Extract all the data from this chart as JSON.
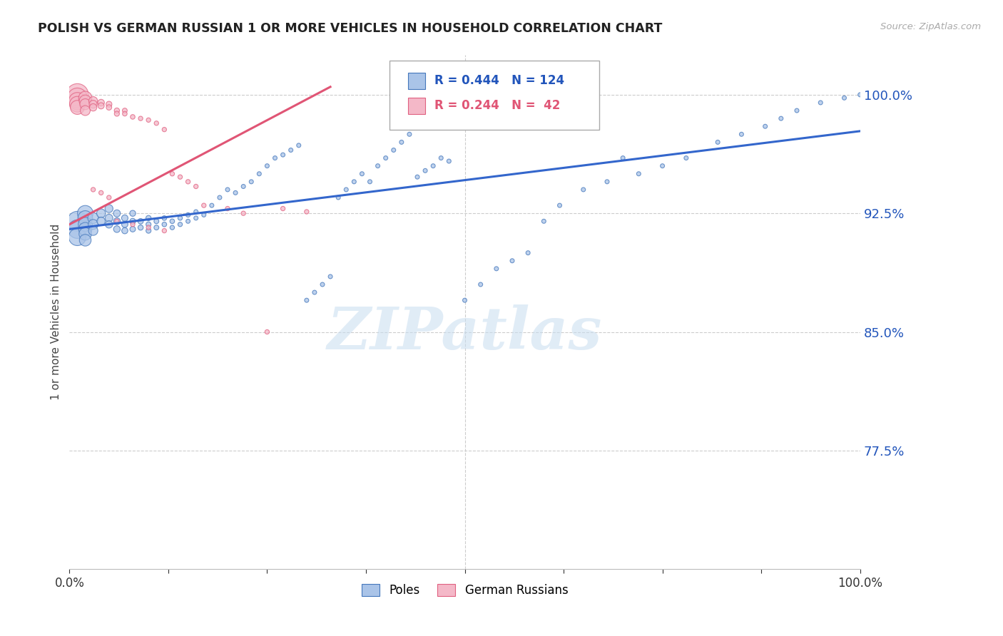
{
  "title": "POLISH VS GERMAN RUSSIAN 1 OR MORE VEHICLES IN HOUSEHOLD CORRELATION CHART",
  "source": "Source: ZipAtlas.com",
  "ylabel": "1 or more Vehicles in Household",
  "ytick_labels": [
    "100.0%",
    "92.5%",
    "85.0%",
    "77.5%"
  ],
  "ytick_values": [
    1.0,
    0.925,
    0.85,
    0.775
  ],
  "xlim": [
    0.0,
    1.0
  ],
  "ylim": [
    0.7,
    1.025
  ],
  "legend_blue_label": "Poles",
  "legend_pink_label": "German Russians",
  "watermark": "ZIPatlas",
  "blue_color": "#aac4e8",
  "pink_color": "#f4b8c8",
  "blue_edge_color": "#4477bb",
  "pink_edge_color": "#e06080",
  "blue_line_color": "#3366cc",
  "pink_line_color": "#e05575",
  "blue_scatter_x": [
    0.01,
    0.01,
    0.01,
    0.02,
    0.02,
    0.02,
    0.02,
    0.02,
    0.02,
    0.03,
    0.03,
    0.03,
    0.04,
    0.04,
    0.05,
    0.05,
    0.05,
    0.06,
    0.06,
    0.06,
    0.07,
    0.07,
    0.07,
    0.08,
    0.08,
    0.08,
    0.09,
    0.09,
    0.1,
    0.1,
    0.1,
    0.11,
    0.11,
    0.12,
    0.12,
    0.13,
    0.13,
    0.14,
    0.14,
    0.15,
    0.15,
    0.16,
    0.16,
    0.17,
    0.18,
    0.19,
    0.2,
    0.21,
    0.22,
    0.23,
    0.24,
    0.25,
    0.26,
    0.27,
    0.28,
    0.29,
    0.3,
    0.31,
    0.32,
    0.33,
    0.34,
    0.35,
    0.36,
    0.37,
    0.38,
    0.39,
    0.4,
    0.41,
    0.42,
    0.43,
    0.44,
    0.45,
    0.46,
    0.47,
    0.48,
    0.5,
    0.52,
    0.54,
    0.56,
    0.58,
    0.6,
    0.62,
    0.65,
    0.68,
    0.7,
    0.72,
    0.75,
    0.78,
    0.82,
    0.85,
    0.88,
    0.9,
    0.92,
    0.95,
    0.98,
    1.0
  ],
  "blue_scatter_y": [
    0.92,
    0.915,
    0.91,
    0.925,
    0.922,
    0.918,
    0.915,
    0.912,
    0.908,
    0.922,
    0.918,
    0.914,
    0.925,
    0.92,
    0.928,
    0.922,
    0.918,
    0.925,
    0.92,
    0.915,
    0.922,
    0.918,
    0.914,
    0.925,
    0.92,
    0.915,
    0.92,
    0.916,
    0.922,
    0.918,
    0.914,
    0.92,
    0.916,
    0.922,
    0.918,
    0.92,
    0.916,
    0.922,
    0.918,
    0.924,
    0.92,
    0.926,
    0.922,
    0.924,
    0.93,
    0.935,
    0.94,
    0.938,
    0.942,
    0.945,
    0.95,
    0.955,
    0.96,
    0.962,
    0.965,
    0.968,
    0.87,
    0.875,
    0.88,
    0.885,
    0.935,
    0.94,
    0.945,
    0.95,
    0.945,
    0.955,
    0.96,
    0.965,
    0.97,
    0.975,
    0.948,
    0.952,
    0.955,
    0.96,
    0.958,
    0.87,
    0.88,
    0.89,
    0.895,
    0.9,
    0.92,
    0.93,
    0.94,
    0.945,
    0.96,
    0.95,
    0.955,
    0.96,
    0.97,
    0.975,
    0.98,
    0.985,
    0.99,
    0.995,
    0.998,
    1.0
  ],
  "blue_scatter_s": [
    400,
    350,
    300,
    250,
    220,
    200,
    180,
    160,
    140,
    120,
    100,
    90,
    80,
    70,
    65,
    60,
    55,
    50,
    48,
    45,
    42,
    40,
    38,
    36,
    34,
    32,
    30,
    28,
    28,
    26,
    26,
    24,
    24,
    22,
    22,
    22,
    20,
    20,
    20,
    20,
    18,
    18,
    18,
    18,
    18,
    18,
    18,
    18,
    18,
    18,
    18,
    18,
    18,
    18,
    18,
    18,
    18,
    18,
    18,
    18,
    18,
    18,
    18,
    18,
    18,
    18,
    18,
    18,
    18,
    18,
    18,
    18,
    18,
    18,
    18,
    18,
    18,
    18,
    18,
    18,
    18,
    18,
    18,
    18,
    18,
    18,
    18,
    18,
    18,
    18,
    18,
    18,
    18,
    18,
    18,
    18
  ],
  "pink_scatter_x": [
    0.01,
    0.01,
    0.01,
    0.01,
    0.01,
    0.02,
    0.02,
    0.02,
    0.02,
    0.03,
    0.03,
    0.03,
    0.04,
    0.04,
    0.05,
    0.05,
    0.06,
    0.06,
    0.07,
    0.07,
    0.08,
    0.09,
    0.1,
    0.11,
    0.12,
    0.13,
    0.14,
    0.15,
    0.16,
    0.17,
    0.2,
    0.22,
    0.25,
    0.27,
    0.3,
    0.06,
    0.08,
    0.1,
    0.12,
    0.03,
    0.04,
    0.05
  ],
  "pink_scatter_y": [
    1.0,
    0.998,
    0.996,
    0.994,
    0.992,
    0.998,
    0.996,
    0.994,
    0.99,
    0.996,
    0.994,
    0.992,
    0.995,
    0.993,
    0.994,
    0.992,
    0.99,
    0.988,
    0.99,
    0.988,
    0.986,
    0.985,
    0.984,
    0.982,
    0.978,
    0.95,
    0.948,
    0.945,
    0.942,
    0.93,
    0.928,
    0.925,
    0.85,
    0.928,
    0.926,
    0.92,
    0.918,
    0.916,
    0.914,
    0.94,
    0.938,
    0.935
  ],
  "pink_scatter_s": [
    500,
    400,
    300,
    250,
    200,
    180,
    150,
    120,
    100,
    80,
    65,
    55,
    45,
    40,
    35,
    30,
    28,
    26,
    24,
    22,
    22,
    20,
    20,
    20,
    20,
    20,
    20,
    20,
    20,
    20,
    20,
    20,
    20,
    20,
    20,
    20,
    20,
    20,
    20,
    20,
    20,
    20
  ],
  "blue_trendline_x": [
    0.0,
    1.0
  ],
  "blue_trendline_y": [
    0.915,
    0.977
  ],
  "pink_trendline_x": [
    0.0,
    0.33
  ],
  "pink_trendline_y": [
    0.918,
    1.005
  ]
}
